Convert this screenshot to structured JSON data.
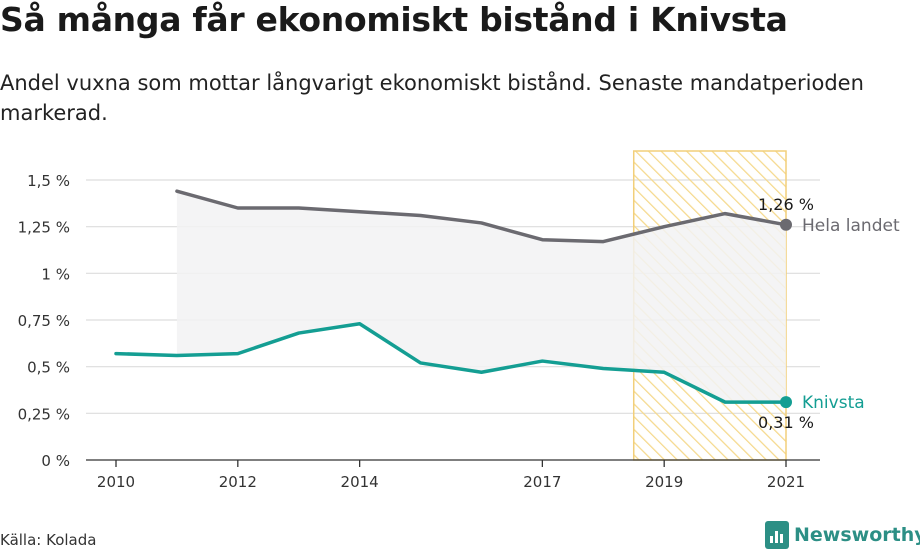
{
  "title": "Så många får ekonomiskt bistånd i Knivsta",
  "subtitle": "Andel vuxna som mottar långvarigt ekonomiskt bistånd. Senaste mandatperioden markerad.",
  "source": "Källa: Kolada",
  "logo_text": "Newsworthy",
  "logo_icon": "newsworthy-logo-icon",
  "chart_data": {
    "type": "line",
    "xlabel": "",
    "ylabel": "",
    "ylim": [
      0,
      1.5
    ],
    "xlim": [
      2010,
      2021
    ],
    "x_ticks": [
      2010,
      2012,
      2014,
      2017,
      2019,
      2021
    ],
    "y_ticks": [
      0,
      0.25,
      0.5,
      0.75,
      1,
      1.25,
      1.5
    ],
    "y_tick_labels": [
      "0 %",
      "0,25 %",
      "0,5 %",
      "0,75 %",
      "1 %",
      "1,25 %",
      "1,5 %"
    ],
    "grid": true,
    "highlight_period": [
      2018.5,
      2021
    ],
    "fill_between_series": true,
    "series": [
      {
        "name": "Hela landet",
        "color": "#6b6a70",
        "x": [
          2011,
          2012,
          2013,
          2014,
          2015,
          2016,
          2017,
          2018,
          2019,
          2020,
          2021
        ],
        "values": [
          1.44,
          1.35,
          1.35,
          1.33,
          1.31,
          1.27,
          1.18,
          1.17,
          1.25,
          1.32,
          1.26
        ],
        "end_label": "1,26 %"
      },
      {
        "name": "Knivsta",
        "color": "#149e93",
        "x": [
          2010,
          2011,
          2012,
          2013,
          2014,
          2015,
          2016,
          2017,
          2018,
          2019,
          2020,
          2021
        ],
        "values": [
          0.57,
          0.56,
          0.57,
          0.68,
          0.73,
          0.52,
          0.47,
          0.53,
          0.49,
          0.47,
          0.31,
          0.31
        ],
        "end_label": "0,31 %"
      }
    ],
    "colors": {
      "highlight_stroke": "#f2cf7a",
      "highlight_hatch": "#f5d98c",
      "fill": "#f2f2f3",
      "grid": "#dddddd",
      "axis": "#333333"
    }
  }
}
